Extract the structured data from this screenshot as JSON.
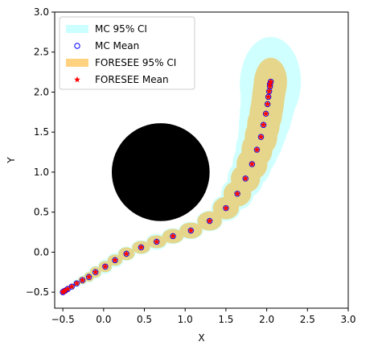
{
  "chart_data": {
    "type": "scatter",
    "xlabel": "X",
    "ylabel": "Y",
    "xlim": [
      -0.6,
      3.0
    ],
    "ylim": [
      -0.7,
      3.0
    ],
    "xticks": [
      -0.5,
      0.0,
      0.5,
      1.0,
      1.5,
      2.0,
      2.5,
      3.0
    ],
    "xtick_labels": [
      "−0.5",
      "0.0",
      "0.5",
      "1.0",
      "1.5",
      "2.0",
      "2.5",
      "3.0"
    ],
    "yticks": [
      -0.5,
      0.0,
      0.5,
      1.0,
      1.5,
      2.0,
      2.5,
      3.0
    ],
    "ytick_labels": [
      "−0.5",
      "0.0",
      "0.5",
      "1.0",
      "1.5",
      "2.0",
      "2.5",
      "3.0"
    ],
    "grid": false,
    "legend_position": "top-left",
    "obstacle": {
      "center": [
        0.7,
        1.0
      ],
      "radius": 0.6,
      "color": "#000000"
    },
    "colors": {
      "mc_ci": "#00ffff",
      "mc_mean": "#0000ff",
      "foresee_ci": "#ffa500",
      "foresee_mean": "#ff0000"
    },
    "series": [
      {
        "name": "MC 95% CI",
        "kind": "ellipses",
        "points": [
          {
            "x": -0.5,
            "y": -0.5,
            "rx": 0.03,
            "ry": 0.03
          },
          {
            "x": -0.49,
            "y": -0.49,
            "rx": 0.03,
            "ry": 0.03
          },
          {
            "x": -0.47,
            "y": -0.48,
            "rx": 0.03,
            "ry": 0.03
          },
          {
            "x": -0.44,
            "y": -0.46,
            "rx": 0.04,
            "ry": 0.04
          },
          {
            "x": -0.39,
            "y": -0.43,
            "rx": 0.04,
            "ry": 0.04
          },
          {
            "x": -0.33,
            "y": -0.39,
            "rx": 0.05,
            "ry": 0.05
          },
          {
            "x": -0.26,
            "y": -0.35,
            "rx": 0.06,
            "ry": 0.06
          },
          {
            "x": -0.18,
            "y": -0.31,
            "rx": 0.07,
            "ry": 0.07
          },
          {
            "x": -0.1,
            "y": -0.25,
            "rx": 0.08,
            "ry": 0.08
          },
          {
            "x": 0.02,
            "y": -0.18,
            "rx": 0.09,
            "ry": 0.09
          },
          {
            "x": 0.14,
            "y": -0.1,
            "rx": 0.1,
            "ry": 0.09
          },
          {
            "x": 0.28,
            "y": -0.02,
            "rx": 0.11,
            "ry": 0.09
          },
          {
            "x": 0.46,
            "y": 0.06,
            "rx": 0.12,
            "ry": 0.09
          },
          {
            "x": 0.65,
            "y": 0.13,
            "rx": 0.13,
            "ry": 0.1
          },
          {
            "x": 0.85,
            "y": 0.2,
            "rx": 0.14,
            "ry": 0.1
          },
          {
            "x": 1.07,
            "y": 0.27,
            "rx": 0.15,
            "ry": 0.11
          },
          {
            "x": 1.3,
            "y": 0.39,
            "rx": 0.16,
            "ry": 0.13
          },
          {
            "x": 1.5,
            "y": 0.55,
            "rx": 0.18,
            "ry": 0.16
          },
          {
            "x": 1.64,
            "y": 0.73,
            "rx": 0.2,
            "ry": 0.2
          },
          {
            "x": 1.74,
            "y": 0.92,
            "rx": 0.22,
            "ry": 0.24
          },
          {
            "x": 1.82,
            "y": 1.1,
            "rx": 0.24,
            "ry": 0.28
          },
          {
            "x": 1.88,
            "y": 1.28,
            "rx": 0.26,
            "ry": 0.32
          },
          {
            "x": 1.93,
            "y": 1.44,
            "rx": 0.28,
            "ry": 0.36
          },
          {
            "x": 1.96,
            "y": 1.59,
            "rx": 0.3,
            "ry": 0.4
          },
          {
            "x": 1.99,
            "y": 1.73,
            "rx": 0.32,
            "ry": 0.43
          },
          {
            "x": 2.01,
            "y": 1.85,
            "rx": 0.33,
            "ry": 0.46
          },
          {
            "x": 2.02,
            "y": 1.94,
            "rx": 0.34,
            "ry": 0.49
          },
          {
            "x": 2.03,
            "y": 2.01,
            "rx": 0.35,
            "ry": 0.51
          },
          {
            "x": 2.04,
            "y": 2.07,
            "rx": 0.36,
            "ry": 0.53
          },
          {
            "x": 2.04,
            "y": 2.1,
            "rx": 0.37,
            "ry": 0.55
          },
          {
            "x": 2.05,
            "y": 2.13,
            "rx": 0.37,
            "ry": 0.56
          }
        ]
      },
      {
        "name": "MC Mean",
        "kind": "open-circle",
        "x": [
          -0.5,
          -0.49,
          -0.47,
          -0.44,
          -0.39,
          -0.33,
          -0.26,
          -0.18,
          -0.1,
          0.02,
          0.14,
          0.28,
          0.46,
          0.65,
          0.85,
          1.07,
          1.3,
          1.5,
          1.64,
          1.74,
          1.82,
          1.88,
          1.93,
          1.96,
          1.99,
          2.01,
          2.02,
          2.03,
          2.04,
          2.04,
          2.05
        ],
        "y": [
          -0.5,
          -0.49,
          -0.48,
          -0.46,
          -0.43,
          -0.39,
          -0.35,
          -0.31,
          -0.25,
          -0.18,
          -0.1,
          -0.02,
          0.06,
          0.13,
          0.2,
          0.27,
          0.39,
          0.55,
          0.73,
          0.92,
          1.1,
          1.28,
          1.44,
          1.59,
          1.73,
          1.85,
          1.94,
          2.01,
          2.07,
          2.1,
          2.13
        ]
      },
      {
        "name": "FORESEE 95% CI",
        "kind": "ellipses",
        "points": [
          {
            "x": -0.5,
            "y": -0.5,
            "rx": 0.02,
            "ry": 0.02
          },
          {
            "x": -0.49,
            "y": -0.49,
            "rx": 0.02,
            "ry": 0.02
          },
          {
            "x": -0.47,
            "y": -0.48,
            "rx": 0.02,
            "ry": 0.02
          },
          {
            "x": -0.44,
            "y": -0.46,
            "rx": 0.03,
            "ry": 0.03
          },
          {
            "x": -0.39,
            "y": -0.43,
            "rx": 0.03,
            "ry": 0.03
          },
          {
            "x": -0.33,
            "y": -0.39,
            "rx": 0.04,
            "ry": 0.04
          },
          {
            "x": -0.26,
            "y": -0.35,
            "rx": 0.05,
            "ry": 0.05
          },
          {
            "x": -0.18,
            "y": -0.31,
            "rx": 0.06,
            "ry": 0.06
          },
          {
            "x": -0.1,
            "y": -0.25,
            "rx": 0.07,
            "ry": 0.07
          },
          {
            "x": 0.02,
            "y": -0.18,
            "rx": 0.08,
            "ry": 0.07
          },
          {
            "x": 0.14,
            "y": -0.1,
            "rx": 0.09,
            "ry": 0.07
          },
          {
            "x": 0.28,
            "y": -0.02,
            "rx": 0.1,
            "ry": 0.08
          },
          {
            "x": 0.46,
            "y": 0.06,
            "rx": 0.11,
            "ry": 0.08
          },
          {
            "x": 0.65,
            "y": 0.13,
            "rx": 0.12,
            "ry": 0.08
          },
          {
            "x": 0.85,
            "y": 0.2,
            "rx": 0.13,
            "ry": 0.09
          },
          {
            "x": 1.07,
            "y": 0.27,
            "rx": 0.14,
            "ry": 0.1
          },
          {
            "x": 1.3,
            "y": 0.39,
            "rx": 0.15,
            "ry": 0.12
          },
          {
            "x": 1.5,
            "y": 0.55,
            "rx": 0.16,
            "ry": 0.14
          },
          {
            "x": 1.64,
            "y": 0.73,
            "rx": 0.17,
            "ry": 0.16
          },
          {
            "x": 1.74,
            "y": 0.92,
            "rx": 0.18,
            "ry": 0.18
          },
          {
            "x": 1.82,
            "y": 1.1,
            "rx": 0.19,
            "ry": 0.2
          },
          {
            "x": 1.88,
            "y": 1.28,
            "rx": 0.19,
            "ry": 0.22
          },
          {
            "x": 1.93,
            "y": 1.44,
            "rx": 0.2,
            "ry": 0.24
          },
          {
            "x": 1.96,
            "y": 1.59,
            "rx": 0.2,
            "ry": 0.26
          },
          {
            "x": 1.99,
            "y": 1.73,
            "rx": 0.2,
            "ry": 0.28
          },
          {
            "x": 2.01,
            "y": 1.85,
            "rx": 0.2,
            "ry": 0.3
          },
          {
            "x": 2.02,
            "y": 1.94,
            "rx": 0.2,
            "ry": 0.3
          },
          {
            "x": 2.03,
            "y": 2.01,
            "rx": 0.2,
            "ry": 0.3
          },
          {
            "x": 2.04,
            "y": 2.07,
            "rx": 0.2,
            "ry": 0.3
          },
          {
            "x": 2.04,
            "y": 2.1,
            "rx": 0.2,
            "ry": 0.3
          },
          {
            "x": 2.05,
            "y": 2.13,
            "rx": 0.2,
            "ry": 0.3
          }
        ]
      },
      {
        "name": "FORESEE Mean",
        "kind": "star",
        "x": [
          -0.5,
          -0.49,
          -0.47,
          -0.44,
          -0.39,
          -0.33,
          -0.26,
          -0.18,
          -0.1,
          0.02,
          0.14,
          0.28,
          0.46,
          0.65,
          0.85,
          1.07,
          1.3,
          1.5,
          1.64,
          1.74,
          1.82,
          1.88,
          1.93,
          1.96,
          1.99,
          2.01,
          2.02,
          2.03,
          2.04,
          2.04,
          2.05
        ],
        "y": [
          -0.5,
          -0.49,
          -0.48,
          -0.46,
          -0.43,
          -0.39,
          -0.35,
          -0.31,
          -0.25,
          -0.18,
          -0.1,
          -0.02,
          0.06,
          0.13,
          0.2,
          0.27,
          0.39,
          0.55,
          0.73,
          0.92,
          1.1,
          1.28,
          1.44,
          1.59,
          1.73,
          1.85,
          1.94,
          2.01,
          2.07,
          2.1,
          2.13
        ]
      }
    ]
  }
}
